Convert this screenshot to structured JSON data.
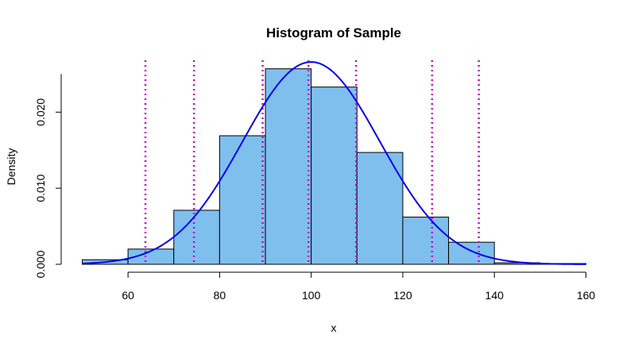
{
  "chart_data": {
    "type": "histogram",
    "title": "Histogram of Sample",
    "xlabel": "x",
    "ylabel": "Density",
    "xlim": [
      50,
      160
    ],
    "ylim": [
      0,
      0.0265
    ],
    "x_ticks": [
      60,
      80,
      100,
      120,
      140,
      160
    ],
    "x_tick_labels": [
      "60",
      "80",
      "100",
      "120",
      "140",
      "160"
    ],
    "y_ticks": [
      0.0,
      0.01,
      0.02
    ],
    "y_tick_labels": [
      "0.000",
      "0.010",
      "0.020"
    ],
    "bin_edges": [
      50,
      60,
      70,
      80,
      90,
      100,
      110,
      120,
      130,
      140,
      150,
      160
    ],
    "bin_densities": [
      0.0006,
      0.002,
      0.0071,
      0.0169,
      0.0257,
      0.0233,
      0.0147,
      0.0062,
      0.0029,
      0.0002,
      0.0001
    ],
    "bar_fill": "#7fbfee",
    "bar_stroke": "#000000",
    "density_curve": {
      "type": "normal",
      "mean": 100,
      "sd": 15,
      "color": "#0000ee"
    },
    "vlines": {
      "x": [
        63.8,
        74.4,
        89.4,
        99.4,
        109.8,
        126.4,
        136.6
      ],
      "color": "#cc00cc",
      "style": "dotted"
    },
    "grid": false
  }
}
